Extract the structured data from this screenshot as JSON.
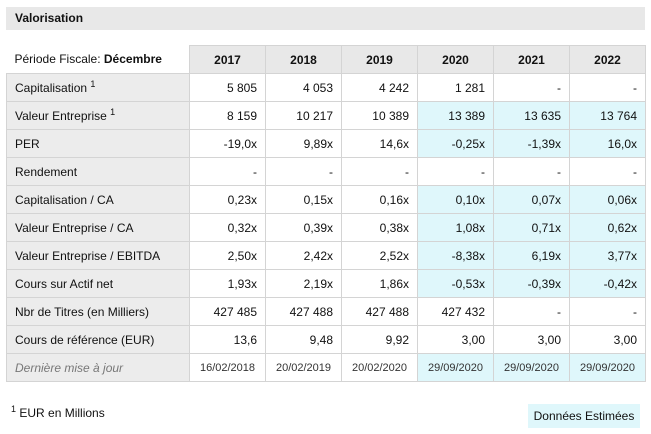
{
  "section_title": "Valorisation",
  "fiscal_label": "Période Fiscale:",
  "fiscal_value": "Décembre",
  "years": [
    "2017",
    "2018",
    "2019",
    "2020",
    "2021",
    "2022"
  ],
  "rows": [
    {
      "label": "Capitalisation",
      "sup": "1",
      "values": [
        "5 805",
        "4 053",
        "4 242",
        "1 281",
        "-",
        "-"
      ],
      "estimated": false
    },
    {
      "label": "Valeur Entreprise",
      "sup": "1",
      "values": [
        "8 159",
        "10 217",
        "10 389",
        "13 389",
        "13 635",
        "13 764"
      ],
      "estimated": true
    },
    {
      "label": "PER",
      "sup": "",
      "values": [
        "-19,0x",
        "9,89x",
        "14,6x",
        "-0,25x",
        "-1,39x",
        "16,0x"
      ],
      "estimated": true
    },
    {
      "label": "Rendement",
      "sup": "",
      "values": [
        "-",
        "-",
        "-",
        "-",
        "-",
        "-"
      ],
      "estimated": false
    },
    {
      "label": "Capitalisation / CA",
      "sup": "",
      "values": [
        "0,23x",
        "0,15x",
        "0,16x",
        "0,10x",
        "0,07x",
        "0,06x"
      ],
      "estimated": true
    },
    {
      "label": "Valeur Entreprise / CA",
      "sup": "",
      "values": [
        "0,32x",
        "0,39x",
        "0,38x",
        "1,08x",
        "0,71x",
        "0,62x"
      ],
      "estimated": true
    },
    {
      "label": "Valeur Entreprise / EBITDA",
      "sup": "",
      "values": [
        "2,50x",
        "2,42x",
        "2,52x",
        "-8,38x",
        "6,19x",
        "3,77x"
      ],
      "estimated": true
    },
    {
      "label": "Cours sur Actif net",
      "sup": "",
      "values": [
        "1,93x",
        "2,19x",
        "1,86x",
        "-0,53x",
        "-0,39x",
        "-0,42x"
      ],
      "estimated": true
    },
    {
      "label": "Nbr de Titres (en Milliers)",
      "sup": "",
      "values": [
        "427 485",
        "427 488",
        "427 488",
        "427 432",
        "-",
        "-"
      ],
      "estimated": false
    },
    {
      "label": "Cours de référence (EUR)",
      "sup": "",
      "values": [
        "13,6",
        "9,48",
        "9,92",
        "3,00",
        "3,00",
        "3,00"
      ],
      "estimated": false
    }
  ],
  "update_row": {
    "label": "Dernière mise à jour",
    "values": [
      "16/02/2018",
      "20/02/2019",
      "20/02/2020",
      "29/09/2020",
      "29/09/2020",
      "29/09/2020"
    ]
  },
  "footnote": {
    "sup": "1",
    "text": "EUR en Millions"
  },
  "estimate_legend": "Données Estimées",
  "colors": {
    "estimate_bg": "#dff7fb",
    "header_bg": "#e8e8e8",
    "label_bg": "#ececec"
  }
}
